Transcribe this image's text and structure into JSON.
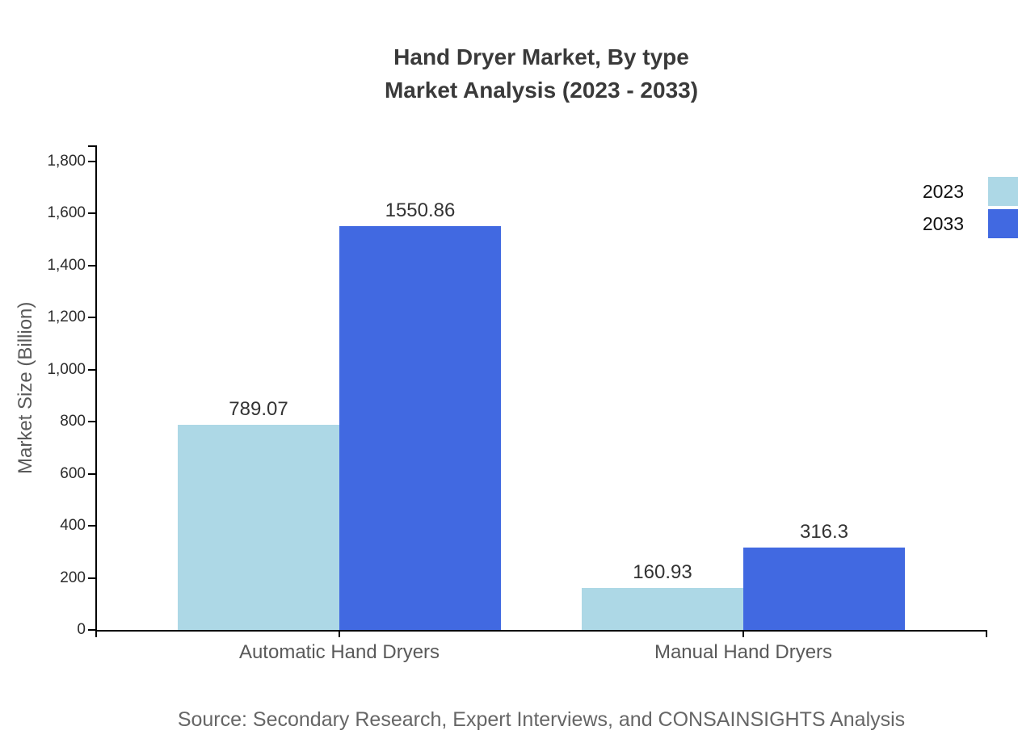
{
  "title": {
    "line1": "Hand Dryer Market, By type",
    "line2": "Market Analysis (2023 - 2033)"
  },
  "legend": [
    {
      "label": "2023",
      "color": "#ADD8E6"
    },
    {
      "label": "2033",
      "color": "#4169E1"
    }
  ],
  "source": "Source: Secondary Research, Expert Interviews, and CONSAINSIGHTS Analysis",
  "chart_data": {
    "type": "bar",
    "categories": [
      "Automatic Hand Dryers",
      "Manual Hand Dryers"
    ],
    "series": [
      {
        "name": "2023",
        "color": "#ADD8E6",
        "values": [
          789.07,
          160.93
        ],
        "labels": [
          "789.07",
          "160.93"
        ]
      },
      {
        "name": "2033",
        "color": "#4169E1",
        "values": [
          1550.86,
          316.3
        ],
        "labels": [
          "1550.86",
          "316.3"
        ]
      }
    ],
    "title": "Hand Dryer Market, By type Market Analysis (2023 - 2033)",
    "xlabel": "",
    "ylabel": "Market Size (Billion)",
    "ylim": [
      0,
      1800
    ],
    "yticks": [
      0,
      200,
      400,
      600,
      800,
      1000,
      1200,
      1400,
      1600,
      1800
    ],
    "ytick_labels": [
      "0",
      "200",
      "400",
      "600",
      "800",
      "1,000",
      "1,200",
      "1,400",
      "1,600",
      "1,800"
    ],
    "grid": false,
    "legend_position": "top-right",
    "axis_color": "#000000",
    "value_label_color": "#333333"
  }
}
